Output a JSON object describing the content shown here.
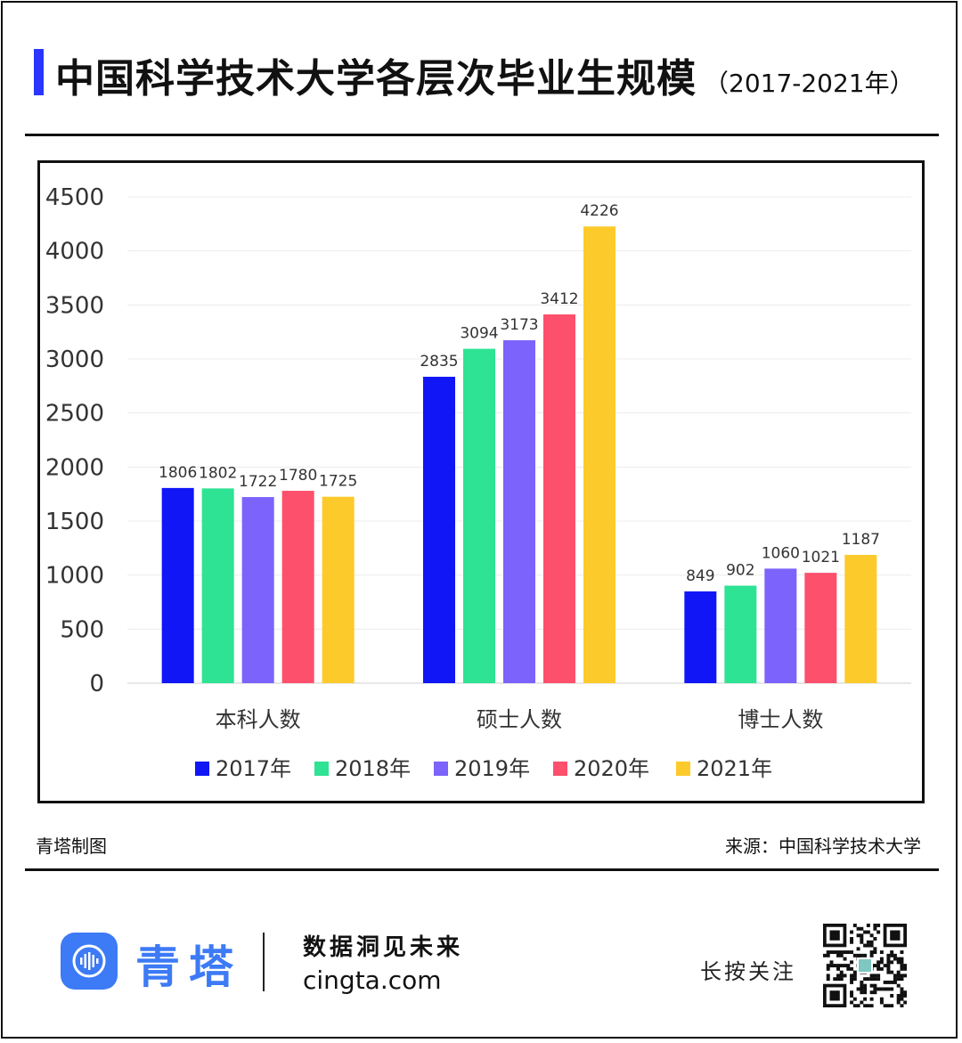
{
  "header": {
    "title": "中国科学技术大学各层次毕业生规模",
    "subtitle": "（2017-2021年）"
  },
  "footer": {
    "made_by": "青塔制图",
    "source": "来源：中国科学技术大学"
  },
  "brand": {
    "name": "青塔",
    "slogan": "数据洞见未来",
    "website": "cingta.com",
    "follow": "长按关注",
    "color": "#3d7af5"
  },
  "chart_data": {
    "type": "bar",
    "categories": [
      "本科人数",
      "硕士人数",
      "博士人数"
    ],
    "series": [
      {
        "name": "2017年",
        "color": "#1016f6",
        "values": [
          1806,
          2835,
          849
        ]
      },
      {
        "name": "2018年",
        "color": "#2ee393",
        "values": [
          1802,
          3094,
          902
        ]
      },
      {
        "name": "2019年",
        "color": "#7b63fb",
        "values": [
          1722,
          3173,
          1060
        ]
      },
      {
        "name": "2020年",
        "color": "#fc506c",
        "values": [
          1780,
          3412,
          1021
        ]
      },
      {
        "name": "2021年",
        "color": "#fdca2c",
        "values": [
          1725,
          4226,
          1187
        ]
      }
    ],
    "yticks": [
      0,
      500,
      1000,
      1500,
      2000,
      2500,
      3000,
      3500,
      4000,
      4500
    ],
    "ylim": [
      0,
      4500
    ],
    "grid": true,
    "legend_position": "bottom",
    "data_labels": true
  }
}
